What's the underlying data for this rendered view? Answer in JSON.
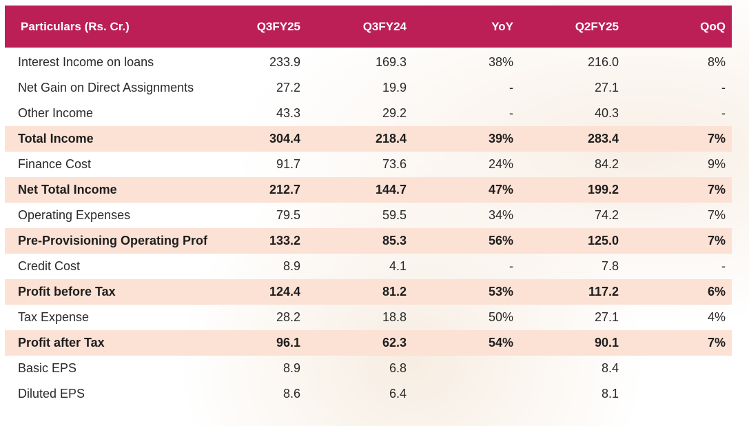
{
  "table": {
    "header": [
      "Particulars (Rs. Cr.)",
      "Q3FY25",
      "Q3FY24",
      "YoY",
      "Q2FY25",
      "QoQ"
    ],
    "rows": [
      {
        "cells": [
          "Interest Income on loans",
          "233.9",
          "169.3",
          "38%",
          "216.0",
          "8%"
        ],
        "bold": false
      },
      {
        "cells": [
          "Net Gain on Direct Assignments",
          "27.2",
          "19.9",
          "-",
          "27.1",
          "-"
        ],
        "bold": false
      },
      {
        "cells": [
          "Other Income",
          "43.3",
          "29.2",
          "-",
          "40.3",
          "-"
        ],
        "bold": false
      },
      {
        "cells": [
          "Total Income",
          "304.4",
          "218.4",
          "39%",
          "283.4",
          "7%"
        ],
        "bold": true
      },
      {
        "cells": [
          "Finance Cost",
          "91.7",
          "73.6",
          "24%",
          "84.2",
          "9%"
        ],
        "bold": false
      },
      {
        "cells": [
          "Net Total Income",
          "212.7",
          "144.7",
          "47%",
          "199.2",
          "7%"
        ],
        "bold": true
      },
      {
        "cells": [
          "Operating Expenses",
          "79.5",
          "59.5",
          "34%",
          "74.2",
          "7%"
        ],
        "bold": false
      },
      {
        "cells": [
          "Pre-Provisioning Operating Prof",
          "133.2",
          "85.3",
          "56%",
          "125.0",
          "7%"
        ],
        "bold": true
      },
      {
        "cells": [
          "Credit Cost",
          "8.9",
          "4.1",
          "-",
          "7.8",
          "-"
        ],
        "bold": false
      },
      {
        "cells": [
          "Profit before Tax",
          "124.4",
          "81.2",
          "53%",
          "117.2",
          "6%"
        ],
        "bold": true
      },
      {
        "cells": [
          "Tax Expense",
          "28.2",
          "18.8",
          "50%",
          "27.1",
          "4%"
        ],
        "bold": false
      },
      {
        "cells": [
          "Profit after Tax",
          "96.1",
          "62.3",
          "54%",
          "90.1",
          "7%"
        ],
        "bold": true
      },
      {
        "cells": [
          "Basic EPS",
          "8.9",
          "6.8",
          null,
          "8.4",
          null
        ],
        "bold": false
      },
      {
        "cells": [
          "Diluted EPS",
          "8.6",
          "6.4",
          null,
          "8.1",
          null
        ],
        "bold": false
      }
    ]
  }
}
